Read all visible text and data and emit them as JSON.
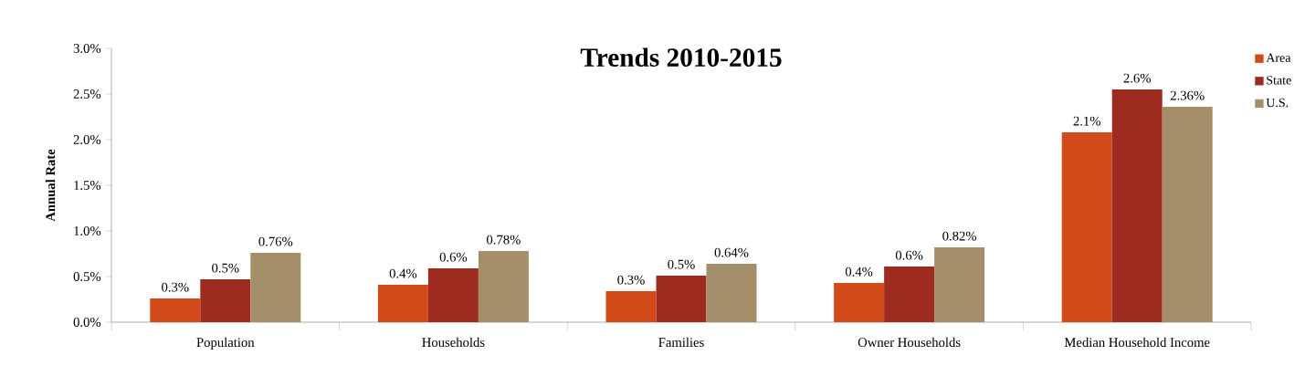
{
  "chart_data": {
    "type": "bar",
    "title": "Trends 2010-2015",
    "ylabel": "Annual Rate",
    "categories": [
      "Population",
      "Households",
      "Families",
      "Owner Households",
      "Median Household Income"
    ],
    "series": [
      {
        "name": "Area",
        "color": "#d24a1a",
        "values": [
          0.26,
          0.41,
          0.34,
          0.43,
          2.08
        ],
        "value_labels": [
          "0.3%",
          "0.4%",
          "0.3%",
          "0.4%",
          "2.1%"
        ]
      },
      {
        "name": "State",
        "color": "#9e2b20",
        "values": [
          0.47,
          0.59,
          0.51,
          0.61,
          2.55
        ],
        "value_labels": [
          "0.5%",
          "0.6%",
          "0.5%",
          "0.6%",
          "2.6%"
        ]
      },
      {
        "name": "U.S.",
        "color": "#a58f6b",
        "values": [
          0.76,
          0.78,
          0.64,
          0.82,
          2.36
        ],
        "value_labels": [
          "0.76%",
          "0.78%",
          "0.64%",
          "0.82%",
          "2.36%"
        ]
      }
    ],
    "ylim": [
      0,
      3
    ],
    "yticks": [
      {
        "value": 0,
        "label": "0.0%"
      },
      {
        "value": 0.5,
        "label": "0.5%"
      },
      {
        "value": 1,
        "label": "1.0%"
      },
      {
        "value": 1.5,
        "label": "1.5%"
      },
      {
        "value": 2,
        "label": "2.0%"
      },
      {
        "value": 2.5,
        "label": "2.5%"
      },
      {
        "value": 3,
        "label": "3.0%"
      }
    ],
    "legend": "top right"
  }
}
